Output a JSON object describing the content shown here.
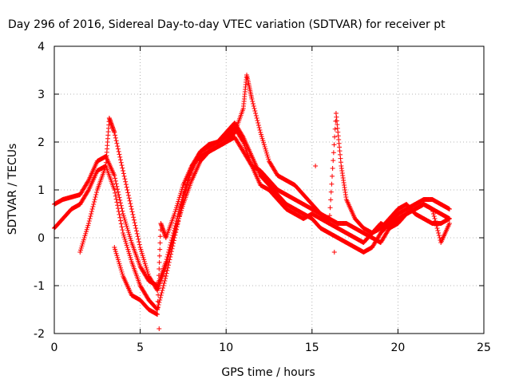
{
  "chart_data": {
    "type": "scatter",
    "title": "Day 296 of 2016, Sidereal Day-to-day VTEC variation (SDTVAR) for receiver pt",
    "xlabel": "GPS time / hours",
    "ylabel": "SDTVAR / TECUs",
    "xlim": [
      0,
      25
    ],
    "ylim": [
      -2,
      4
    ],
    "xticks": [
      "0",
      "5",
      "10",
      "15",
      "20",
      "25"
    ],
    "yticks": [
      "-2",
      "-1",
      "0",
      "1",
      "2",
      "3",
      "4"
    ],
    "grid": true,
    "legend": "none",
    "marker": "+",
    "color": "#ff0000",
    "series": [
      {
        "x": [
          0.0,
          0.5,
          1.0,
          1.5,
          2.0,
          2.5,
          3.0,
          3.5,
          4.0,
          4.5,
          5.0,
          5.5,
          6.0,
          6.5,
          7.0,
          7.5,
          8.0,
          8.5,
          9.0,
          9.5,
          10.0,
          10.5,
          11.0,
          11.5,
          12.0,
          12.5,
          13.0,
          13.5,
          14.0,
          14.5,
          15.0,
          15.5,
          16.0,
          16.5,
          17.0,
          17.5,
          18.0,
          18.5,
          19.0,
          19.5,
          20.0,
          20.5,
          21.0,
          21.5,
          22.0,
          22.5,
          23.0
        ],
        "y": [
          0.7,
          0.8,
          0.85,
          0.9,
          1.2,
          1.6,
          1.7,
          1.3,
          0.5,
          -0.1,
          -0.6,
          -0.9,
          -1.0,
          -0.5,
          0.2,
          0.9,
          1.4,
          1.8,
          1.95,
          2.0,
          2.1,
          2.3,
          2.0,
          1.5,
          1.1,
          1.0,
          0.8,
          0.6,
          0.5,
          0.4,
          0.5,
          0.4,
          0.3,
          0.2,
          0.1,
          0.0,
          -0.1,
          0.1,
          0.3,
          0.2,
          0.3,
          0.5,
          0.6,
          0.7,
          0.6,
          0.5,
          0.4
        ]
      },
      {
        "x": [
          0.0,
          0.5,
          1.0,
          1.5,
          2.0,
          2.5,
          3.0,
          3.5,
          4.0,
          4.5,
          5.0,
          5.5,
          6.0,
          6.5,
          7.0,
          7.5,
          8.0,
          8.5,
          9.0,
          9.5,
          10.0,
          10.5,
          11.0,
          11.5,
          12.0,
          12.5,
          13.0,
          13.5,
          14.0,
          14.5,
          15.0,
          15.5,
          16.0,
          16.5,
          17.0,
          17.5,
          18.0,
          18.5,
          19.0,
          19.5,
          20.0,
          20.5,
          21.0,
          21.5,
          22.0,
          22.5,
          23.0
        ],
        "y": [
          0.2,
          0.4,
          0.6,
          0.7,
          1.0,
          1.4,
          1.5,
          1.0,
          0.1,
          -0.5,
          -1.0,
          -1.3,
          -1.5,
          -0.8,
          0.0,
          0.8,
          1.5,
          1.8,
          1.9,
          2.0,
          2.2,
          2.4,
          2.1,
          1.7,
          1.3,
          1.1,
          0.9,
          0.7,
          0.6,
          0.5,
          0.4,
          0.2,
          0.1,
          0.0,
          -0.1,
          -0.2,
          -0.3,
          -0.2,
          0.1,
          0.3,
          0.5,
          0.6,
          0.7,
          0.8,
          0.8,
          0.7,
          0.6
        ]
      },
      {
        "x": [
          1.5,
          2.0,
          2.5,
          3.0,
          3.2,
          3.5,
          4.0,
          4.5,
          5.0,
          5.5,
          6.0,
          6.5,
          7.0,
          7.5,
          8.0,
          8.5,
          9.0,
          9.5,
          10.0,
          10.5,
          11.0,
          11.2,
          11.5,
          12.0,
          12.5,
          13.0,
          13.5,
          14.0,
          14.5,
          15.0,
          15.5,
          16.0,
          16.4,
          16.7,
          17.0,
          17.5,
          18.0,
          18.5,
          19.0,
          19.5,
          20.0,
          20.5,
          21.0,
          21.5,
          22.0,
          22.5,
          23.0
        ],
        "y": [
          -0.3,
          0.3,
          1.0,
          1.5,
          2.5,
          2.2,
          1.4,
          0.6,
          -0.2,
          -0.8,
          -1.1,
          -0.6,
          0.1,
          0.7,
          1.2,
          1.6,
          1.8,
          1.9,
          2.0,
          2.2,
          2.7,
          3.4,
          2.9,
          2.2,
          1.6,
          1.3,
          1.2,
          1.1,
          0.9,
          0.7,
          0.5,
          0.3,
          2.6,
          1.5,
          0.8,
          0.4,
          0.2,
          0.1,
          0.2,
          0.4,
          0.6,
          0.7,
          0.5,
          0.4,
          0.3,
          0.3,
          0.4
        ]
      },
      {
        "x": [
          3.5,
          4.0,
          4.5,
          5.0,
          5.5,
          6.0,
          6.2,
          6.5,
          7.0,
          7.5,
          8.0,
          8.5,
          9.0,
          9.5,
          10.0,
          10.5,
          11.0,
          11.5,
          12.0,
          12.5,
          13.0,
          13.5,
          14.0,
          14.5,
          15.0,
          15.5,
          16.0,
          16.5,
          17.0,
          17.5,
          18.0,
          18.5,
          19.0,
          19.5,
          20.0,
          20.5,
          21.0,
          21.5,
          22.0,
          22.5,
          23.0
        ],
        "y": [
          -0.2,
          -0.8,
          -1.2,
          -1.3,
          -1.5,
          -1.6,
          0.3,
          0.0,
          0.5,
          1.1,
          1.5,
          1.7,
          1.8,
          1.9,
          2.0,
          2.1,
          1.8,
          1.5,
          1.4,
          1.2,
          1.0,
          0.9,
          0.8,
          0.7,
          0.6,
          0.5,
          0.4,
          0.3,
          0.3,
          0.2,
          0.1,
          0.0,
          -0.1,
          0.2,
          0.4,
          0.5,
          0.6,
          0.7,
          0.6,
          -0.1,
          0.3
        ]
      }
    ],
    "outliers": [
      {
        "x": 6.1,
        "y": -1.9
      },
      {
        "x": 15.2,
        "y": 1.5
      },
      {
        "x": 16.3,
        "y": -0.3
      }
    ]
  }
}
